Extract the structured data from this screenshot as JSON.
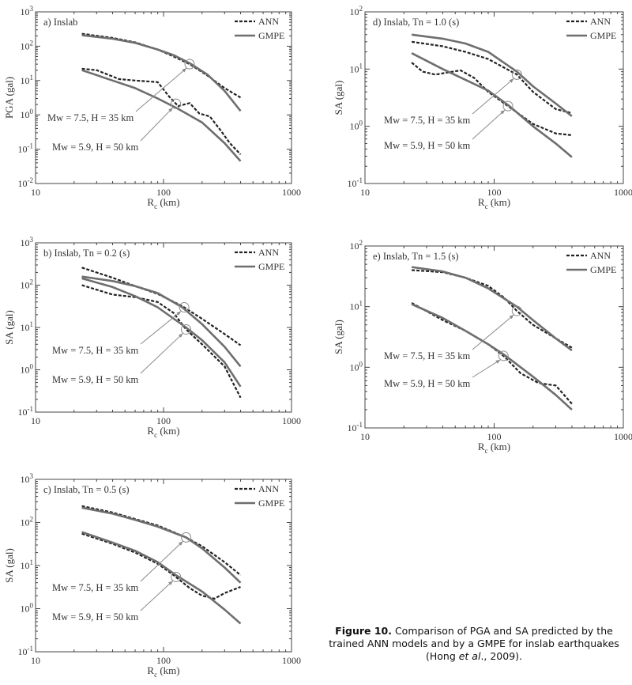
{
  "figure": {
    "caption_label": "Figure 10.",
    "caption_text_1": " Comparison of PGA and SA predicted by the trained ANN models and by a GMPE for inslab earthquakes (Hong ",
    "caption_italic": "et al",
    "caption_text_2": "., 2009)."
  },
  "chart_data": [
    {
      "type": "line",
      "panel": "a",
      "title": "a) Inslab",
      "xlabel": "R_c (km)",
      "ylabel": "PGA (gal)",
      "xlim": [
        10,
        1000
      ],
      "ylim": [
        0.01,
        1000
      ],
      "xticks": [
        10,
        100,
        1000
      ],
      "yticks": [
        0.01,
        0.1,
        1,
        10,
        100,
        1000
      ],
      "legend": [
        "ANN",
        "GMPE"
      ],
      "annotations": [
        "Mw = 7.5, H = 35 km",
        "Mw = 5.9, H = 50 km"
      ],
      "series": [
        {
          "name": "ANN",
          "case": "Mw = 7.5, H = 35 km",
          "x": [
            23,
            40,
            60,
            90,
            120,
            160,
            220,
            300,
            400
          ],
          "y": [
            230,
            175,
            130,
            80,
            50,
            30,
            14,
            6,
            3.2
          ]
        },
        {
          "name": "GMPE",
          "case": "Mw = 7.5, H = 35 km",
          "x": [
            23,
            40,
            60,
            90,
            120,
            160,
            220,
            300,
            400
          ],
          "y": [
            210,
            165,
            125,
            80,
            55,
            32,
            15,
            5,
            1.3
          ]
        },
        {
          "name": "ANN",
          "case": "Mw = 5.9, H = 50 km",
          "x": [
            23,
            30,
            45,
            60,
            90,
            110,
            130,
            160,
            190,
            230,
            280,
            330,
            400
          ],
          "y": [
            22,
            20,
            11,
            10,
            9,
            3.5,
            1.8,
            2.2,
            1.1,
            0.9,
            0.35,
            0.15,
            0.07
          ]
        },
        {
          "name": "GMPE",
          "case": "Mw = 5.9, H = 50 km",
          "x": [
            23,
            40,
            60,
            90,
            130,
            200,
            300,
            400
          ],
          "y": [
            20,
            10,
            6,
            3,
            1.5,
            0.6,
            0.15,
            0.045
          ]
        }
      ]
    },
    {
      "type": "line",
      "panel": "b",
      "title": "b) Inslab, Tn = 0.2 (s)",
      "xlabel": "R_c (km)",
      "ylabel": "SA (gal)",
      "xlim": [
        10,
        1000
      ],
      "ylim": [
        0.1,
        1000
      ],
      "xticks": [
        10,
        100,
        1000
      ],
      "yticks": [
        0.1,
        1,
        10,
        100,
        1000
      ],
      "legend": [
        "ANN",
        "GMPE"
      ],
      "annotations": [
        "Mw = 7.5, H = 35 km",
        "Mw = 5.9, H = 50 km"
      ],
      "series": [
        {
          "name": "ANN",
          "case": "Mw = 7.5, H = 35 km",
          "x": [
            23,
            40,
            60,
            90,
            140,
            200,
            300,
            400
          ],
          "y": [
            260,
            150,
            95,
            62,
            32,
            16,
            7,
            3.8
          ]
        },
        {
          "name": "GMPE",
          "case": "Mw = 7.5, H = 35 km",
          "x": [
            23,
            40,
            60,
            90,
            140,
            200,
            300,
            400
          ],
          "y": [
            160,
            125,
            95,
            65,
            30,
            12,
            3.5,
            1.2
          ]
        },
        {
          "name": "ANN",
          "case": "Mw = 5.9, H = 50 km",
          "x": [
            23,
            40,
            60,
            90,
            120,
            150,
            200,
            300,
            400
          ],
          "y": [
            100,
            60,
            52,
            40,
            22,
            9,
            4,
            1.2,
            0.22
          ]
        },
        {
          "name": "GMPE",
          "case": "Mw = 5.9, H = 50 km",
          "x": [
            23,
            40,
            60,
            90,
            150,
            200,
            300,
            400
          ],
          "y": [
            145,
            90,
            55,
            30,
            10,
            5,
            1.5,
            0.4
          ]
        }
      ]
    },
    {
      "type": "line",
      "panel": "c",
      "title": "c) Inslab, Tn = 0.5 (s)",
      "xlabel": "R_c (km)",
      "ylabel": "SA (gal)",
      "xlim": [
        10,
        1000
      ],
      "ylim": [
        0.1,
        1000
      ],
      "xticks": [
        10,
        100,
        1000
      ],
      "yticks": [
        0.1,
        1,
        10,
        100,
        1000
      ],
      "legend": [
        "ANN",
        "GMPE"
      ],
      "annotations": [
        "Mw = 7.5, H = 35 km",
        "Mw = 5.9, H = 50 km"
      ],
      "series": [
        {
          "name": "ANN",
          "case": "Mw = 7.5, H = 35 km",
          "x": [
            23,
            40,
            60,
            90,
            150,
            200,
            300,
            400
          ],
          "y": [
            240,
            170,
            120,
            85,
            45,
            28,
            12,
            6
          ]
        },
        {
          "name": "GMPE",
          "case": "Mw = 7.5, H = 35 km",
          "x": [
            23,
            40,
            60,
            90,
            150,
            200,
            300,
            400
          ],
          "y": [
            220,
            160,
            115,
            80,
            45,
            25,
            9,
            4
          ]
        },
        {
          "name": "ANN",
          "case": "Mw = 5.9, H = 50 km",
          "x": [
            23,
            40,
            60,
            90,
            120,
            160,
            200,
            250,
            300,
            400
          ],
          "y": [
            55,
            32,
            20,
            11,
            6,
            3,
            2,
            1.7,
            2.3,
            3.2
          ]
        },
        {
          "name": "GMPE",
          "case": "Mw = 5.9, H = 50 km",
          "x": [
            23,
            40,
            60,
            90,
            125,
            200,
            300,
            400
          ],
          "y": [
            60,
            34,
            22,
            12,
            6,
            2.5,
            0.95,
            0.45
          ]
        }
      ]
    },
    {
      "type": "line",
      "panel": "d",
      "title": "d) Inslab, Tn = 1.0 (s)",
      "xlabel": "R_c (km)",
      "ylabel": "SA (gal)",
      "xlim": [
        10,
        1000
      ],
      "ylim": [
        0.1,
        100
      ],
      "xticks": [
        10,
        100,
        1000
      ],
      "yticks": [
        0.1,
        1,
        10,
        100
      ],
      "legend": [
        "ANN",
        "GMPE"
      ],
      "annotations": [
        "Mw = 7.5, H = 35 km",
        "Mw = 5.9, H = 50 km"
      ],
      "series": [
        {
          "name": "ANN",
          "case": "Mw = 7.5, H = 35 km",
          "x": [
            23,
            40,
            60,
            90,
            150,
            200,
            300,
            400
          ],
          "y": [
            30,
            25,
            20,
            15,
            8,
            4,
            2,
            1.7
          ]
        },
        {
          "name": "GMPE",
          "case": "Mw = 7.5, H = 35 km",
          "x": [
            23,
            40,
            60,
            90,
            150,
            200,
            300,
            400
          ],
          "y": [
            40,
            34,
            28,
            20,
            9,
            5,
            2.5,
            1.5
          ]
        },
        {
          "name": "ANN",
          "case": "Mw = 5.9, H = 50 km",
          "x": [
            23,
            28,
            35,
            55,
            70,
            90,
            130,
            200,
            300,
            400
          ],
          "y": [
            13,
            9,
            8,
            9.5,
            7,
            4,
            2.2,
            1.1,
            0.75,
            0.7
          ]
        },
        {
          "name": "GMPE",
          "case": "Mw = 5.9, H = 50 km",
          "x": [
            23,
            40,
            60,
            90,
            130,
            200,
            300,
            400
          ],
          "y": [
            19,
            10,
            6.5,
            4.2,
            2.3,
            1,
            0.5,
            0.29
          ]
        }
      ]
    },
    {
      "type": "line",
      "panel": "e",
      "title": "e) Inslab, Tn = 1.5 (s)",
      "xlabel": "R_c (km)",
      "ylabel": "SA (gal)",
      "xlim": [
        10,
        1000
      ],
      "ylim": [
        0.1,
        100
      ],
      "xticks": [
        10,
        100,
        1000
      ],
      "yticks": [
        0.1,
        1,
        10,
        100
      ],
      "legend": [
        "ANN",
        "GMPE"
      ],
      "annotations": [
        "Mw = 7.5, H = 35 km",
        "Mw = 5.9, H = 50 km"
      ],
      "series": [
        {
          "name": "ANN",
          "case": "Mw = 7.5, H = 35 km",
          "x": [
            23,
            40,
            60,
            90,
            120,
            150,
            200,
            300,
            400
          ],
          "y": [
            40,
            37,
            30,
            22,
            14,
            8.5,
            5,
            3,
            2.1
          ]
        },
        {
          "name": "GMPE",
          "case": "Mw = 7.5, H = 35 km",
          "x": [
            23,
            40,
            60,
            90,
            150,
            200,
            300,
            400
          ],
          "y": [
            45,
            38,
            30,
            20,
            10,
            6,
            3,
            1.9
          ]
        },
        {
          "name": "ANN",
          "case": "Mw = 5.9, H = 50 km",
          "x": [
            23,
            40,
            60,
            90,
            120,
            160,
            220,
            300,
            400
          ],
          "y": [
            11.5,
            6,
            4,
            2.4,
            1.5,
            0.8,
            0.55,
            0.5,
            0.25
          ]
        },
        {
          "name": "GMPE",
          "case": "Mw = 5.9, H = 50 km",
          "x": [
            23,
            40,
            60,
            90,
            120,
            200,
            300,
            400
          ],
          "y": [
            11,
            6.5,
            4,
            2.4,
            1.6,
            0.7,
            0.35,
            0.2
          ]
        }
      ]
    }
  ]
}
